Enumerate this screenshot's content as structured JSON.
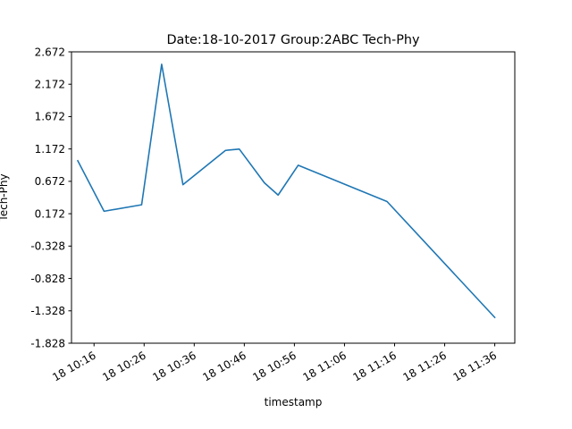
{
  "chart_data": {
    "type": "line",
    "title": "Date:18-10-2017 Group:2ABC Tech-Phy",
    "xlabel": "timestamp",
    "ylabel": "Tech-Phy",
    "ylim": [
      -1.828,
      2.672
    ],
    "xlim": [
      "18 10:11:30",
      "18 11:40:00"
    ],
    "yticks": [
      "-1.828",
      "-1.328",
      "-0.828",
      "-0.328",
      "0.172",
      "0.672",
      "1.172",
      "1.672",
      "2.172",
      "2.672"
    ],
    "xticks": [
      {
        "time": "18 10:16",
        "label": "18 10:16"
      },
      {
        "time": "18 10:26",
        "label": "18 10:26"
      },
      {
        "time": "18 10:36",
        "label": "18 10:36"
      },
      {
        "time": "18 10:46",
        "label": "18 10:46"
      },
      {
        "time": "18 10:56",
        "label": "18 10:56"
      },
      {
        "time": "18 11:06",
        "label": "18 11:06"
      },
      {
        "time": "18 11:16",
        "label": "18 11:16"
      },
      {
        "time": "18 11:26",
        "label": "18 11:26"
      },
      {
        "time": "18 11:36",
        "label": "18 11:36"
      }
    ],
    "grid": false,
    "series_color": "#1f77b4",
    "series": [
      {
        "x": [
          "18 10:12:45",
          "18 10:18:00",
          "18 10:25:30",
          "18 10:29:30",
          "18 10:33:45",
          "18 10:42:15",
          "18 10:45:00",
          "18 10:50:00",
          "18 10:52:45",
          "18 10:56:45",
          "18 11:14:30",
          "18 11:36:00"
        ],
        "values": [
          0.99,
          0.21,
          0.31,
          2.48,
          0.62,
          1.15,
          1.17,
          0.65,
          0.46,
          0.92,
          0.36,
          -1.43
        ]
      }
    ]
  }
}
